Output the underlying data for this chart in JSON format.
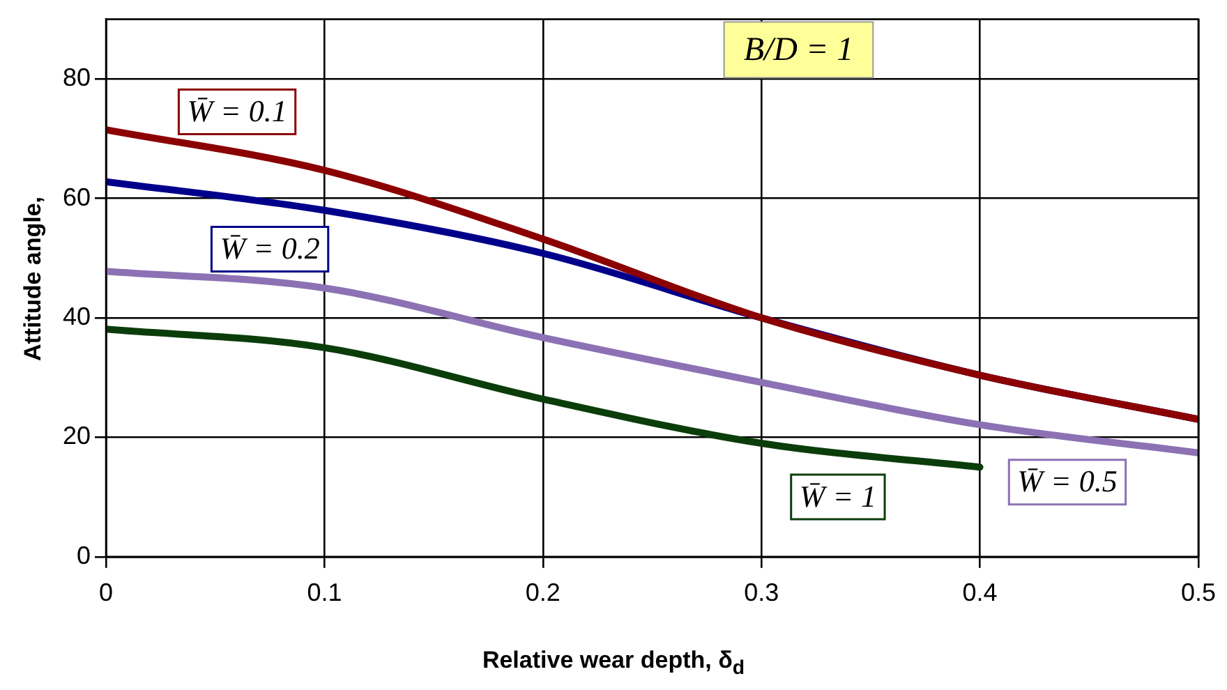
{
  "chart_data": {
    "type": "line",
    "xlabel": "Relative wear depth, δ$_{d}$",
    "ylabel": "Attitude angle,",
    "annotations": [
      "B/D = 1"
    ],
    "x": [
      0,
      0.1,
      0.2,
      0.3,
      0.4,
      0.5
    ],
    "xlim": [
      0,
      0.5
    ],
    "xticks": [
      0,
      0.1,
      0.2,
      0.3,
      0.4,
      0.5
    ],
    "ylim": [
      0,
      90
    ],
    "yticks": [
      0,
      20,
      40,
      60,
      80
    ],
    "grid": true,
    "legend": false,
    "marker": "none",
    "line_style": "solid",
    "series": [
      {
        "name": "W̄ = 0.1",
        "color": "#8b0000",
        "values": [
          71.5,
          64.7,
          53.2,
          40,
          30.4,
          23
        ]
      },
      {
        "name": "W̄ = 0.2",
        "color": "#00008b",
        "values": [
          62.8,
          58,
          50.8,
          40,
          30.4,
          23
        ]
      },
      {
        "name": "W̄ = 0.5",
        "color": "#8c72b4",
        "values": [
          47.8,
          45,
          36.7,
          29.2,
          22.1,
          17.4
        ]
      },
      {
        "name": "W̄ = 1",
        "color": "#0b3d0b",
        "values": [
          38.1,
          35,
          26.4,
          19,
          15,
          null
        ]
      }
    ]
  }
}
